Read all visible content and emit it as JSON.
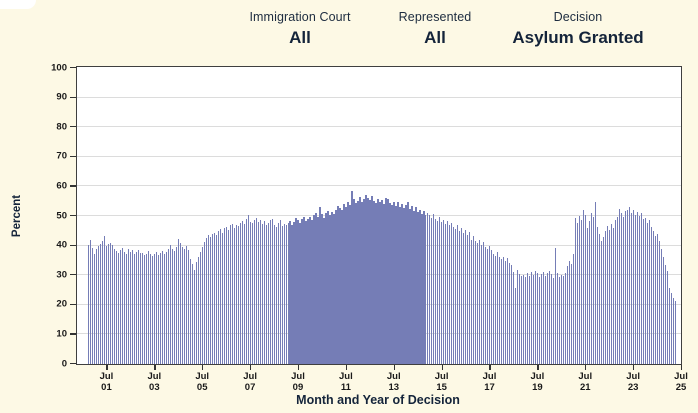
{
  "header": {
    "columns": [
      {
        "label": "Immigration Court",
        "value": "All"
      },
      {
        "label": "Represented",
        "value": "All"
      },
      {
        "label": "Decision",
        "value": "Asylum Granted"
      }
    ]
  },
  "colors": {
    "background": "#fdf9e5",
    "bar": "#757db6",
    "plot_background": "#ffffff",
    "plot_border": "#3f3f3f",
    "gridline": "#dcdcdc",
    "text_dark": "#14243a"
  },
  "chart_data": {
    "type": "bar",
    "title": "",
    "xlabel": "Month and Year of Decision",
    "ylabel": "Percent",
    "ylim": [
      0,
      100
    ],
    "y_ticks": [
      0,
      10,
      20,
      30,
      40,
      50,
      60,
      70,
      80,
      90,
      100
    ],
    "grid": "horizontal",
    "legend": "none",
    "x_unit": "month",
    "x_start": "Oct 2000",
    "x_end": "Apr 2025",
    "x_ticks": [
      {
        "top": "Jul",
        "bottom": "01",
        "month_index": 9
      },
      {
        "top": "Jul",
        "bottom": "03",
        "month_index": 33
      },
      {
        "top": "Jul",
        "bottom": "05",
        "month_index": 57
      },
      {
        "top": "Jul",
        "bottom": "07",
        "month_index": 81
      },
      {
        "top": "Jul",
        "bottom": "09",
        "month_index": 105
      },
      {
        "top": "Jul",
        "bottom": "11",
        "month_index": 129
      },
      {
        "top": "Jul",
        "bottom": "13",
        "month_index": 153
      },
      {
        "top": "Jul",
        "bottom": "15",
        "month_index": 177
      },
      {
        "top": "Jul",
        "bottom": "17",
        "month_index": 201
      },
      {
        "top": "Jul",
        "bottom": "19",
        "month_index": 225
      },
      {
        "top": "Jul",
        "bottom": "21",
        "month_index": 249
      },
      {
        "top": "Jul",
        "bottom": "23",
        "month_index": 273
      },
      {
        "top": "Jul",
        "bottom": "25",
        "month_index": 297
      }
    ],
    "values": [
      40.3,
      41.8,
      39.3,
      37.0,
      38.7,
      39.8,
      40.5,
      41.4,
      43.4,
      40.0,
      40.6,
      40.9,
      40.2,
      38.9,
      38.3,
      37.6,
      38.4,
      39.2,
      38.0,
      37.3,
      38.8,
      37.8,
      38.5,
      37.1,
      37.9,
      38.6,
      37.4,
      37.5,
      36.8,
      37.2,
      38.1,
      37.0,
      36.5,
      37.3,
      38.0,
      36.9,
      37.6,
      38.3,
      37.1,
      37.8,
      38.9,
      40.1,
      39.0,
      38.2,
      39.5,
      42.3,
      40.8,
      39.6,
      38.7,
      39.9,
      38.4,
      35.6,
      33.8,
      31.9,
      34.5,
      36.2,
      38.0,
      39.4,
      41.2,
      42.6,
      43.5,
      42.8,
      43.9,
      44.3,
      43.6,
      44.8,
      45.5,
      44.1,
      45.9,
      46.4,
      45.2,
      46.8,
      47.3,
      46.1,
      47.0,
      46.5,
      47.8,
      48.4,
      47.2,
      48.9,
      50.5,
      48.1,
      47.5,
      48.6,
      49.2,
      47.9,
      48.8,
      47.4,
      48.2,
      46.9,
      47.7,
      48.5,
      49.1,
      47.0,
      46.3,
      47.8,
      48.7,
      46.6,
      47.2,
      46.8,
      47.5,
      48.3,
      47.1,
      48.0,
      49.4,
      48.8,
      47.6,
      48.9,
      49.7,
      48.4,
      49.0,
      49.5,
      48.6,
      50.2,
      51.0,
      49.8,
      53.2,
      50.6,
      49.3,
      50.9,
      51.7,
      50.4,
      51.2,
      50.8,
      52.1,
      53.4,
      52.6,
      51.9,
      54.2,
      53.0,
      54.8,
      53.7,
      58.3,
      55.6,
      54.4,
      55.2,
      56.4,
      54.9,
      55.8,
      57.1,
      56.0,
      55.3,
      56.7,
      55.0,
      54.3,
      55.9,
      54.6,
      55.5,
      54.1,
      56.2,
      55.7,
      54.5,
      53.8,
      54.9,
      53.4,
      54.7,
      53.1,
      54.0,
      52.8,
      53.6,
      54.6,
      52.4,
      53.3,
      51.8,
      52.9,
      51.3,
      52.2,
      50.7,
      51.6,
      50.2,
      51.0,
      50.5,
      49.4,
      50.8,
      49.0,
      48.3,
      49.8,
      47.9,
      48.8,
      47.4,
      48.2,
      46.9,
      47.7,
      46.4,
      45.6,
      46.9,
      44.8,
      45.9,
      44.2,
      45.3,
      43.7,
      44.5,
      42.0,
      43.1,
      41.6,
      40.9,
      41.8,
      40.3,
      41.2,
      39.6,
      38.9,
      40.0,
      38.4,
      37.2,
      36.5,
      37.8,
      36.1,
      35.4,
      36.3,
      34.7,
      35.8,
      34.2,
      33.6,
      31.0,
      25.8,
      31.8,
      30.4,
      29.6,
      30.2,
      29.3,
      30.6,
      29.8,
      31.2,
      30.1,
      31.5,
      30.8,
      29.5,
      30.3,
      31.0,
      29.9,
      30.7,
      31.4,
      30.5,
      29.0,
      39.2,
      30.9,
      29.4,
      30.2,
      29.7,
      30.6,
      33.0,
      34.7,
      33.8,
      37.0,
      49.3,
      47.6,
      50.1,
      48.7,
      51.9,
      50.4,
      45.9,
      48.2,
      51.0,
      49.5,
      54.6,
      46.2,
      43.8,
      41.5,
      42.9,
      44.9,
      46.6,
      45.4,
      47.3,
      46.0,
      48.8,
      49.5,
      52.4,
      50.9,
      49.7,
      51.6,
      52.2,
      53.0,
      51.1,
      52.1,
      50.3,
      51.4,
      49.9,
      51.0,
      48.9,
      49.4,
      47.8,
      48.6,
      46.3,
      44.8,
      43.2,
      44.0,
      41.7,
      38.9,
      36.2,
      33.5,
      31.3,
      25.6,
      23.9,
      22.4,
      21.2
    ]
  }
}
